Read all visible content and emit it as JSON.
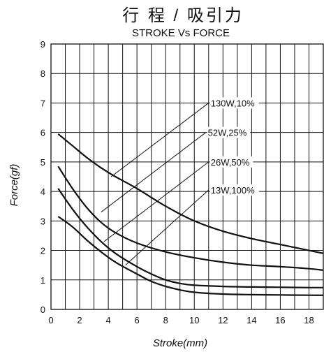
{
  "chart_data": {
    "type": "line",
    "title": "行 程 / 吸引力",
    "subtitle": "STROKE Vs FORCE",
    "xlabel": "Stroke(mm)",
    "ylabel": "Force(gf)",
    "xlim": [
      0,
      19
    ],
    "ylim": [
      0,
      9
    ],
    "x_ticks": [
      "0",
      "2",
      "4",
      "6",
      "8",
      "10",
      "12",
      "14",
      "16",
      "18"
    ],
    "y_ticks": [
      "0",
      "1",
      "2",
      "3",
      "4",
      "5",
      "6",
      "7",
      "8",
      "9"
    ],
    "grid": true,
    "series": [
      {
        "name": "130W,10%",
        "x": [
          0.5,
          1.5,
          2.5,
          3.5,
          4.5,
          6,
          8,
          10,
          12,
          14,
          16,
          18,
          19
        ],
        "y": [
          5.95,
          5.55,
          5.15,
          4.8,
          4.5,
          4.1,
          3.5,
          3.0,
          2.65,
          2.4,
          2.2,
          2.0,
          1.9
        ]
      },
      {
        "name": "52W,25%",
        "x": [
          0.5,
          1.5,
          2.5,
          3.5,
          4.5,
          6,
          8,
          10,
          12,
          14,
          16,
          18,
          19
        ],
        "y": [
          4.85,
          4.1,
          3.45,
          2.95,
          2.6,
          2.25,
          1.95,
          1.75,
          1.6,
          1.5,
          1.45,
          1.38,
          1.33
        ]
      },
      {
        "name": "26W,50%",
        "x": [
          0.5,
          1.5,
          2.5,
          3.5,
          4.5,
          6,
          7,
          8,
          9,
          10,
          12,
          14,
          16,
          18,
          19
        ],
        "y": [
          4.1,
          3.4,
          2.8,
          2.3,
          1.9,
          1.45,
          1.2,
          1.0,
          0.88,
          0.82,
          0.78,
          0.76,
          0.75,
          0.74,
          0.74
        ]
      },
      {
        "name": "13W,100%",
        "x": [
          0.5,
          1.5,
          2.5,
          3.5,
          4.5,
          6,
          7,
          8,
          9,
          10,
          12,
          14,
          16,
          18,
          19
        ],
        "y": [
          3.15,
          2.8,
          2.35,
          1.95,
          1.6,
          1.2,
          0.95,
          0.78,
          0.66,
          0.58,
          0.52,
          0.5,
          0.49,
          0.48,
          0.48
        ]
      }
    ],
    "annotations": [
      {
        "label": "130W,10%",
        "line_from": [
          4.2,
          4.5
        ],
        "line_to": [
          11,
          7.0
        ]
      },
      {
        "label": "52W,25%",
        "line_from": [
          3.5,
          3.3
        ],
        "line_to": [
          10.8,
          6.0
        ]
      },
      {
        "label": "26W,50%",
        "line_from": [
          3.7,
          2.3
        ],
        "line_to": [
          11,
          5.0
        ]
      },
      {
        "label": "13W,100%",
        "line_from": [
          5.2,
          1.5
        ],
        "line_to": [
          11,
          4.05
        ]
      }
    ]
  }
}
